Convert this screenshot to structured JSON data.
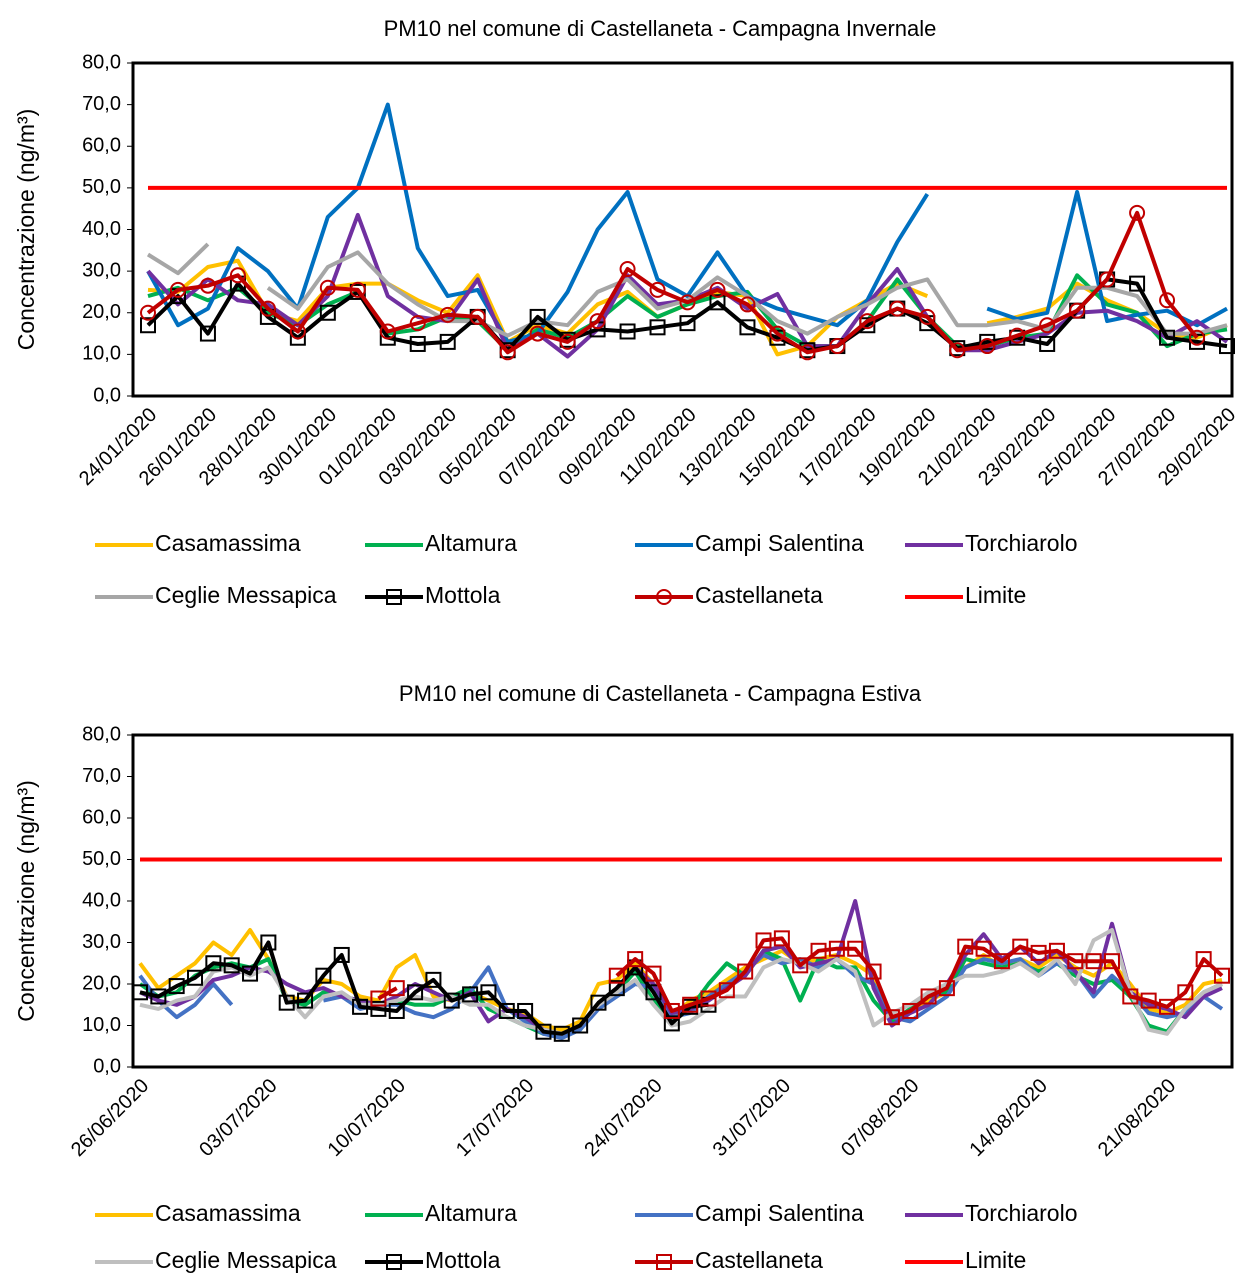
{
  "chart_data": [
    {
      "type": "line",
      "title": "PM10 nel comune di Castellaneta - Campagna Invernale",
      "ylabel": "Concentrazione (ng/m³)",
      "legend": "bottom",
      "grid": false,
      "categories": [
        "24/01/2020",
        null,
        "26/01/2020",
        null,
        "28/01/2020",
        null,
        "30/01/2020",
        null,
        "01/02/2020",
        null,
        "03/02/2020",
        null,
        "05/02/2020",
        null,
        "07/02/2020",
        null,
        "09/02/2020",
        null,
        "11/02/2020",
        null,
        "13/02/2020",
        null,
        "15/02/2020",
        null,
        "17/02/2020",
        null,
        "19/02/2020",
        null,
        "21/02/2020",
        null,
        "23/02/2020",
        null,
        "25/02/2020",
        null,
        "27/02/2020",
        null,
        "29/02/2020"
      ],
      "ylim": [
        0,
        80
      ],
      "yticks": [
        {
          "value": 0,
          "label": "0,0"
        },
        {
          "value": 10,
          "label": "10,0"
        },
        {
          "value": 20,
          "label": "20,0"
        },
        {
          "value": 30,
          "label": "30,0"
        },
        {
          "value": 40,
          "label": "40,0"
        },
        {
          "value": 50,
          "label": "50,0"
        },
        {
          "value": 60,
          "label": "60,0"
        },
        {
          "value": 70,
          "label": "70,0"
        },
        {
          "value": 80,
          "label": "80,0"
        }
      ],
      "series": [
        {
          "name": "Casamassima",
          "color": "#ffc000",
          "values": [
            25.5,
            25,
            31,
            32.5,
            20,
            18,
            26,
            27,
            27,
            23,
            20,
            29,
            13,
            17,
            15,
            22,
            25,
            19,
            22,
            25,
            24,
            10,
            12,
            19,
            23,
            27,
            24,
            null,
            17.5,
            19,
            21,
            27,
            23,
            20,
            15,
            14,
            17
          ]
        },
        {
          "name": "Altamura",
          "color": "#00b050",
          "values": [
            24,
            26,
            23,
            26,
            20,
            17,
            22,
            25,
            15,
            16,
            19,
            18,
            11,
            16,
            14,
            18,
            24,
            19,
            22,
            24,
            25,
            16,
            12,
            12,
            18,
            28,
            19,
            12,
            12,
            14,
            15,
            29,
            22,
            20,
            12,
            15,
            16
          ]
        },
        {
          "name": "Campi Salentina",
          "color": "#0070c0",
          "values": [
            30,
            17,
            21,
            35.5,
            30,
            21,
            43,
            50,
            70,
            35.5,
            24,
            25.5,
            13,
            15,
            25,
            40,
            49,
            28,
            24,
            34.5,
            24,
            21,
            19,
            17,
            23,
            37,
            48.5,
            null,
            21,
            18.5,
            20,
            49,
            18,
            19.5,
            20.5,
            17,
            21
          ]
        },
        {
          "name": "Torchiarolo",
          "color": "#7030a0",
          "values": [
            30,
            22,
            28,
            23,
            22,
            17,
            24,
            43.5,
            24,
            19,
            18,
            28,
            11,
            15,
            9.5,
            16,
            29,
            22,
            23,
            26,
            21,
            24.5,
            12,
            12,
            22,
            30.5,
            19,
            11,
            11,
            13,
            15,
            20,
            20.5,
            18,
            14,
            18,
            13
          ]
        },
        {
          "name": "Ceglie Messapica",
          "color": "#a6a6a6",
          "values": [
            34,
            29.5,
            36.5,
            null,
            26,
            21,
            31,
            34.5,
            27,
            22,
            18,
            18,
            14.5,
            18,
            17,
            25,
            28,
            21,
            23,
            28.5,
            24,
            18,
            15,
            19,
            22,
            26,
            28,
            17,
            17,
            18,
            16,
            26,
            26,
            24,
            15,
            15,
            17
          ]
        },
        {
          "name": "Mottola",
          "color": "#000000",
          "marker": "square",
          "values": [
            17,
            24,
            15,
            27,
            19,
            14,
            20,
            25,
            14,
            12.5,
            13,
            19,
            11,
            19,
            13.5,
            16,
            15.5,
            16.5,
            17.5,
            22.5,
            16.5,
            14,
            11,
            12,
            17,
            21,
            17.5,
            11.5,
            13,
            14,
            12.5,
            20.5,
            28,
            27,
            14,
            13,
            12
          ]
        },
        {
          "name": "Castellaneta",
          "color": "#c00000",
          "marker": "circle",
          "values": [
            20,
            25.5,
            26.5,
            29,
            21,
            15.5,
            26,
            25.5,
            15.5,
            17.5,
            19.5,
            19,
            10.5,
            15,
            13,
            18,
            30.5,
            25.5,
            22.5,
            25.5,
            22,
            15,
            10.5,
            12,
            18,
            21,
            19,
            11,
            12,
            14.5,
            17,
            20.5,
            28,
            44,
            23,
            14,
            null
          ]
        },
        {
          "name": "Limite",
          "color": "#ff0000",
          "values": [
            50,
            50,
            50,
            50,
            50,
            50,
            50,
            50,
            50,
            50,
            50,
            50,
            50,
            50,
            50,
            50,
            50,
            50,
            50,
            50,
            50,
            50,
            50,
            50,
            50,
            50,
            50,
            50,
            50,
            50,
            50,
            50,
            50,
            50,
            50,
            50,
            50
          ]
        }
      ]
    },
    {
      "type": "line",
      "title": "PM10 nel comune di Castellaneta - Campagna Estiva",
      "ylabel": "Concentrazione (ng/m³)",
      "legend": "bottom",
      "grid": false,
      "categories": [
        "26/06/2020",
        null,
        null,
        null,
        null,
        null,
        null,
        "03/07/2020",
        null,
        null,
        null,
        null,
        null,
        null,
        "10/07/2020",
        null,
        null,
        null,
        null,
        null,
        null,
        "17/07/2020",
        null,
        null,
        null,
        null,
        null,
        null,
        "24/07/2020",
        null,
        null,
        null,
        null,
        null,
        null,
        "31/07/2020",
        null,
        null,
        null,
        null,
        null,
        null,
        "07/08/2020",
        null,
        null,
        null,
        null,
        null,
        null,
        "14/08/2020",
        null,
        null,
        null,
        null,
        null,
        null,
        "21/08/2020",
        null,
        null,
        null
      ],
      "ylim": [
        0,
        80
      ],
      "yticks": [
        {
          "value": 0,
          "label": "0,0"
        },
        {
          "value": 10,
          "label": "10,0"
        },
        {
          "value": 20,
          "label": "20,0"
        },
        {
          "value": 30,
          "label": "30,0"
        },
        {
          "value": 40,
          "label": "40,0"
        },
        {
          "value": 50,
          "label": "50,0"
        },
        {
          "value": 60,
          "label": "60,0"
        },
        {
          "value": 70,
          "label": "70,0"
        },
        {
          "value": 80,
          "label": "80,0"
        }
      ],
      "series": [
        {
          "name": "Casamassima",
          "color": "#ffc000",
          "values": [
            25,
            19,
            22,
            25,
            30,
            27,
            33,
            26,
            17,
            16,
            21,
            20,
            17,
            16,
            24,
            27,
            17,
            16,
            18,
            16,
            14,
            13,
            10,
            9,
            11,
            20,
            21,
            25,
            20,
            12,
            16,
            18,
            21,
            24,
            26,
            28,
            25,
            26,
            27,
            25,
            22,
            12,
            13,
            16,
            18,
            24,
            27,
            24,
            26,
            24,
            27,
            24,
            22,
            25,
            20,
            14,
            13,
            15,
            20,
            21
          ]
        },
        {
          "name": "Altamura",
          "color": "#00b050",
          "values": [
            20,
            17,
            18,
            22,
            24,
            25,
            24,
            26,
            16,
            15,
            18,
            17,
            16,
            15,
            16,
            15,
            15,
            17,
            19,
            14,
            12,
            10,
            8,
            8,
            9,
            15,
            18,
            23,
            16,
            11,
            14,
            20,
            25,
            22,
            28,
            26,
            16,
            26,
            24,
            24,
            16,
            11,
            14,
            17,
            18,
            26,
            25,
            24,
            25,
            23,
            25,
            22,
            20,
            21,
            17,
            10,
            8.5,
            14,
            18,
            20
          ]
        },
        {
          "name": "Campi Salentina",
          "color": "#4472c4",
          "values": [
            22,
            16,
            12,
            15,
            20,
            15,
            null,
            null,
            null,
            null,
            16,
            17,
            14,
            15,
            15,
            13,
            12,
            14,
            18,
            24,
            14,
            11,
            8,
            7,
            9,
            14,
            17,
            20,
            19,
            12,
            13,
            17,
            20,
            23,
            27,
            25,
            26,
            24,
            26,
            22,
            20,
            12,
            11,
            14,
            17,
            24,
            26,
            25,
            26,
            22,
            25,
            23,
            17,
            22,
            18,
            13,
            12,
            13,
            17,
            14
          ]
        },
        {
          "name": "Torchiarolo",
          "color": "#7030a0",
          "values": [
            18,
            16,
            15,
            17,
            21,
            22,
            24,
            23,
            20,
            18,
            19,
            17,
            16,
            15,
            17,
            20,
            18,
            16,
            18,
            11,
            14,
            12,
            9,
            8,
            10,
            15,
            19,
            24,
            20,
            13,
            14,
            16,
            19,
            22,
            28,
            29,
            24,
            25,
            26,
            40,
            19,
            10,
            13,
            15,
            20,
            27,
            32,
            26,
            29,
            25,
            28,
            23,
            18,
            34.5,
            18,
            15,
            14,
            12,
            17,
            19
          ]
        },
        {
          "name": "Ceglie Messapica",
          "color": "#bfbfbf",
          "values": [
            15,
            14,
            16,
            17,
            23,
            24,
            22,
            24,
            17,
            12,
            17,
            18,
            15,
            15,
            16,
            17,
            16,
            17,
            15,
            15,
            12,
            10,
            9,
            8,
            10,
            15,
            18,
            21,
            15,
            10,
            11,
            14,
            17,
            17,
            24,
            26,
            25,
            23,
            26,
            23,
            10,
            13,
            15,
            18,
            20,
            22,
            22,
            23,
            25,
            22,
            26,
            20,
            30.5,
            33,
            18,
            9,
            8,
            14,
            18,
            20
          ]
        },
        {
          "name": "Mottola",
          "color": "#000000",
          "marker": "square",
          "values": [
            18,
            17,
            19.5,
            21.5,
            25,
            24.5,
            22.5,
            30,
            15.5,
            16,
            22,
            27,
            14.5,
            14,
            13.5,
            18,
            21,
            16,
            17.5,
            18,
            13.5,
            13.5,
            8.5,
            8,
            10,
            15.5,
            19,
            24,
            18,
            10.5,
            14.5,
            15,
            null,
            null,
            null,
            null,
            null,
            null,
            null,
            null,
            null,
            null,
            null,
            null,
            null,
            null,
            null,
            null,
            null,
            null,
            null,
            null,
            null,
            null,
            null,
            null,
            null,
            null,
            null,
            null
          ]
        },
        {
          "name": "Castellaneta",
          "color": "#c00000",
          "marker": "square",
          "values": [
            null,
            null,
            null,
            null,
            null,
            null,
            null,
            null,
            null,
            null,
            null,
            null,
            null,
            16.5,
            19,
            null,
            null,
            null,
            null,
            null,
            null,
            null,
            null,
            null,
            null,
            null,
            22,
            26,
            22.5,
            13.5,
            15,
            16.5,
            18.5,
            23,
            30.5,
            31,
            24.5,
            28,
            28.5,
            28.5,
            23,
            12,
            13.5,
            17,
            19,
            29,
            28.5,
            25.5,
            29,
            27.5,
            28,
            25.5,
            25.5,
            25.5,
            17,
            16,
            14.5,
            18,
            26,
            22
          ]
        },
        {
          "name": "Limite",
          "color": "#ff0000",
          "values": [
            50,
            50,
            50,
            50,
            50,
            50,
            50,
            50,
            50,
            50,
            50,
            50,
            50,
            50,
            50,
            50,
            50,
            50,
            50,
            50,
            50,
            50,
            50,
            50,
            50,
            50,
            50,
            50,
            50,
            50,
            50,
            50,
            50,
            50,
            50,
            50,
            50,
            50,
            50,
            50,
            50,
            50,
            50,
            50,
            50,
            50,
            50,
            50,
            50,
            50,
            50,
            50,
            50,
            50,
            50,
            50,
            50,
            50,
            50,
            50
          ]
        }
      ]
    }
  ]
}
